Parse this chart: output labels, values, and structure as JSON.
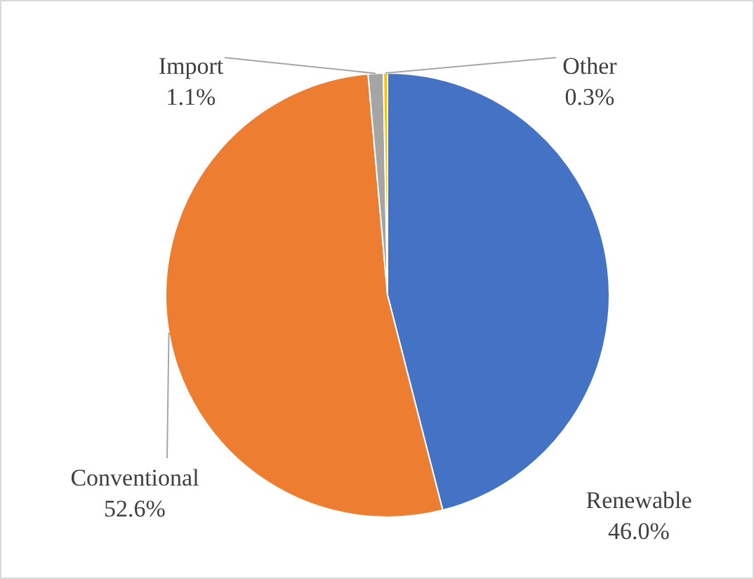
{
  "chart_data": {
    "type": "pie",
    "categories": [
      "Renewable",
      "Conventional",
      "Import",
      "Other"
    ],
    "values": [
      46.0,
      52.6,
      1.1,
      0.3
    ],
    "colors": [
      "#4472c4",
      "#ed7d31",
      "#a5a5a5",
      "#ffc000"
    ],
    "value_labels": [
      "46.0%",
      "52.6%",
      "1.1%",
      "0.3%"
    ],
    "legend": false
  }
}
